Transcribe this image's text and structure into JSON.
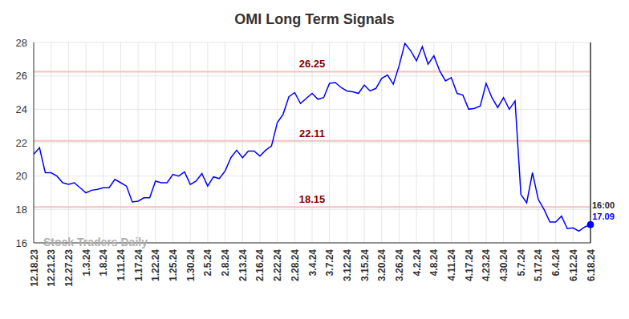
{
  "chart_data": {
    "type": "line",
    "title": "OMI Long Term Signals",
    "watermark": "Stock Traders Daily",
    "annotation": "16:00",
    "categories": [
      "12.18.23",
      null,
      null,
      "12.21.23",
      null,
      null,
      "12.27.23",
      null,
      null,
      "1.3.24",
      null,
      null,
      "1.8.24",
      null,
      null,
      "1.11.24",
      null,
      null,
      "1.17.24",
      null,
      null,
      "1.22.24",
      null,
      null,
      "1.25.24",
      null,
      null,
      "1.30.24",
      null,
      null,
      "2.5.24",
      null,
      null,
      "2.8.24",
      null,
      null,
      "2.13.24",
      null,
      null,
      "2.16.24",
      null,
      null,
      "2.22.24",
      null,
      null,
      "2.28.24",
      null,
      null,
      "3.4.24",
      null,
      null,
      "3.7.24",
      null,
      null,
      "3.12.24",
      null,
      null,
      "3.15.24",
      null,
      null,
      "3.20.24",
      null,
      null,
      "3.26.24",
      null,
      null,
      "4.2.24",
      null,
      null,
      "4.8.24",
      null,
      null,
      "4.11.24",
      null,
      null,
      "4.17.24",
      null,
      null,
      "4.23.24",
      null,
      null,
      "4.30.24",
      null,
      null,
      "5.7.24",
      null,
      null,
      "5.17.24",
      null,
      null,
      "6.4.24",
      null,
      null,
      "6.12.24",
      null,
      null,
      "6.18.24"
    ],
    "values": [
      21.3,
      21.7,
      20.2,
      20.2,
      20.0,
      19.6,
      19.5,
      19.6,
      19.3,
      19.0,
      19.15,
      19.2,
      19.3,
      19.3,
      19.8,
      19.6,
      19.4,
      18.45,
      18.5,
      18.7,
      18.7,
      19.7,
      19.6,
      19.6,
      20.1,
      20.0,
      20.25,
      19.5,
      19.7,
      20.15,
      19.4,
      19.95,
      19.85,
      20.3,
      21.1,
      21.55,
      21.1,
      21.5,
      21.5,
      21.2,
      21.55,
      21.8,
      23.2,
      23.7,
      24.75,
      25.0,
      24.35,
      24.65,
      24.95,
      24.6,
      24.7,
      25.55,
      25.6,
      25.3,
      25.1,
      25.05,
      24.95,
      25.45,
      25.1,
      25.25,
      25.85,
      26.05,
      25.5,
      26.6,
      27.95,
      27.5,
      26.9,
      27.75,
      26.7,
      27.2,
      26.3,
      25.7,
      25.9,
      24.95,
      24.85,
      24.0,
      24.05,
      24.2,
      25.55,
      24.7,
      24.1,
      24.7,
      24.0,
      24.5,
      18.9,
      18.4,
      20.2,
      18.6,
      18.0,
      17.25,
      17.25,
      17.6,
      16.85,
      16.9,
      16.7,
      16.95,
      17.09
    ],
    "color": "#0000ff",
    "reference_lines": [
      26.25,
      22.11,
      18.15
    ],
    "ylim": [
      16,
      28
    ],
    "yticks": [
      16,
      18,
      20,
      22,
      24,
      26,
      28
    ],
    "grid": true
  }
}
